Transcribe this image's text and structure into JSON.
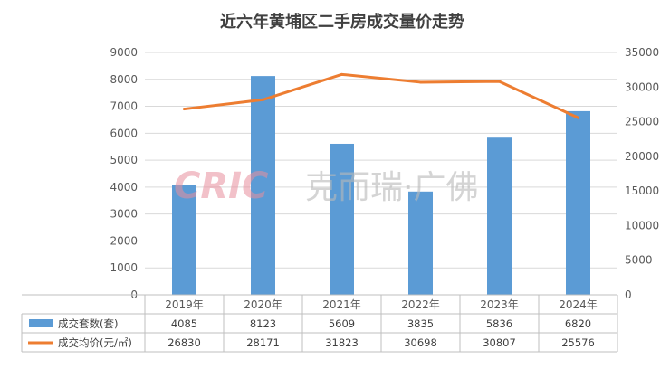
{
  "chart_data": {
    "type": "bar+line",
    "title": "近六年黄埔区二手房成交量价走势",
    "categories": [
      "2019年",
      "2020年",
      "2021年",
      "2022年",
      "2023年",
      "2024年"
    ],
    "series": [
      {
        "name": "成交套数(套)",
        "type": "bar",
        "axis": "left",
        "color": "#5b9bd5",
        "values": [
          4085,
          8123,
          5609,
          3835,
          5836,
          6820
        ]
      },
      {
        "name": "成交均价(元/㎡)",
        "type": "line",
        "axis": "right",
        "color": "#ed7d31",
        "values": [
          26830,
          28171,
          31823,
          30698,
          30807,
          25576
        ]
      }
    ],
    "y_left": {
      "min": 0,
      "max": 9000,
      "step": 1000,
      "ticks": [
        "0",
        "1000",
        "2000",
        "3000",
        "4000",
        "5000",
        "6000",
        "7000",
        "8000",
        "9000"
      ]
    },
    "y_right": {
      "min": 0,
      "max": 35000,
      "step": 5000,
      "ticks": [
        "0",
        "5000",
        "10000",
        "15000",
        "20000",
        "25000",
        "30000",
        "35000"
      ]
    },
    "grid": true,
    "legend": "data-table-below"
  },
  "watermark": {
    "latin": "CRIC",
    "cjk": "克而瑞·广佛"
  }
}
